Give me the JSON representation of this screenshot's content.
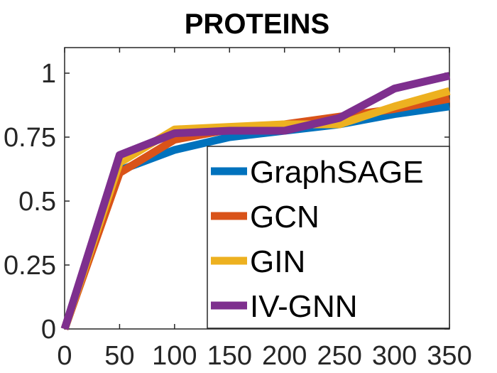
{
  "chart_data": {
    "type": "line",
    "title": "PROTEINS",
    "xlabel": "",
    "ylabel": "",
    "x": [
      0,
      50,
      100,
      150,
      200,
      250,
      300,
      350
    ],
    "xlim": [
      0,
      350
    ],
    "ylim": [
      0,
      1.1
    ],
    "xticks": [
      0,
      50,
      100,
      150,
      200,
      250,
      300,
      350
    ],
    "xtick_labels": [
      "0",
      "50",
      "100",
      "150",
      "200",
      "250",
      "300",
      "350"
    ],
    "yticks": [
      0,
      0.25,
      0.5,
      0.75,
      1
    ],
    "ytick_labels": [
      "0",
      "0.25",
      "0.5",
      "0.75",
      "1"
    ],
    "grid": false,
    "legend_position": "lower-right",
    "series": [
      {
        "name": "GraphSAGE",
        "color": "#0072BD",
        "values": [
          0,
          0.62,
          0.7,
          0.75,
          0.775,
          0.8,
          0.84,
          0.87
        ]
      },
      {
        "name": "GCN",
        "color": "#D95319",
        "values": [
          0,
          0.61,
          0.74,
          0.78,
          0.8,
          0.83,
          0.86,
          0.9
        ]
      },
      {
        "name": "GIN",
        "color": "#EDB120",
        "values": [
          0,
          0.65,
          0.78,
          0.79,
          0.8,
          0.8,
          0.87,
          0.93
        ]
      },
      {
        "name": "IV-GNN",
        "color": "#7E2F8E",
        "values": [
          0,
          0.68,
          0.765,
          0.775,
          0.775,
          0.825,
          0.94,
          0.99
        ]
      }
    ]
  }
}
